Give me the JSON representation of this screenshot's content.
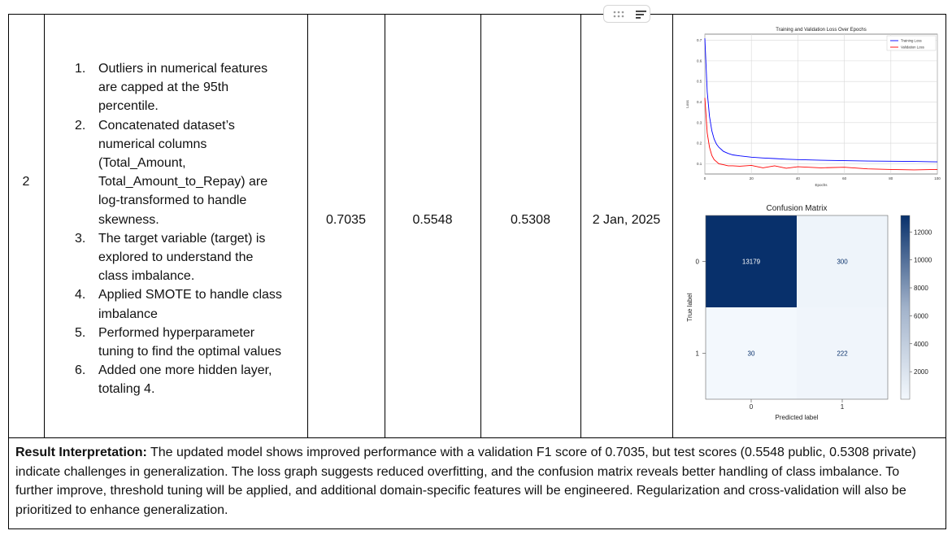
{
  "row_number": "2",
  "steps": [
    {
      "num": "1.",
      "lines": [
        "Outliers in numerical features",
        "are capped at the 95th",
        "percentile."
      ]
    },
    {
      "num": "2.",
      "lines": [
        "Concatenated dataset’s",
        "numerical columns",
        "(Total_Amount,",
        "Total_Amount_to_Repay) are",
        "log-transformed to handle",
        "skewness."
      ]
    },
    {
      "num": "3.",
      "lines": [
        "The target variable (target) is",
        "explored to understand the",
        "class imbalance."
      ]
    },
    {
      "num": "4.",
      "lines": [
        "Applied SMOTE to handle class",
        "imbalance"
      ]
    },
    {
      "num": "5.",
      "lines": [
        "Performed hyperparameter",
        "tuning to find the optimal values"
      ]
    },
    {
      "num": "6.",
      "lines": [
        "Added one more hidden layer,",
        "totaling 4."
      ]
    }
  ],
  "metrics": {
    "validation_f1": "0.7035",
    "public_score": "0.5548",
    "private_score": "0.5308",
    "date": "2 Jan, 2025"
  },
  "result": {
    "label": "Result Interpretation:",
    "text": " The updated model shows improved performance with a validation F1 score of 0.7035, but test scores (0.5548 public, 0.5308 private) indicate challenges in generalization. The loss graph suggests reduced overfitting, and the confusion matrix reveals better handling of class imbalance. To further improve, threshold tuning will be applied, and additional domain-specific features will be engineered. Regularization and cross-validation will also be prioritized to enhance generalization."
  },
  "icons": {
    "drag": "drag-handle-icon",
    "menu": "lines-menu-icon"
  },
  "colors": {
    "train": "#0000ff",
    "val": "#ff0000",
    "cm_dark": "#08306b",
    "cm_light": "#f3f8fd"
  },
  "chart_data": [
    {
      "type": "line",
      "title": "Training and Validation Loss Over Epochs",
      "xlabel": "Epochs",
      "ylabel": "Loss",
      "xlim": [
        0,
        100
      ],
      "ylim": [
        0.05,
        0.73
      ],
      "xticks": [
        "0",
        "20",
        "40",
        "60",
        "80",
        "100"
      ],
      "yticks": [
        "0.1",
        "0.2",
        "0.3",
        "0.4",
        "0.5",
        "0.6",
        "0.7"
      ],
      "grid": true,
      "legend": "top-right",
      "x": [
        0,
        1,
        2,
        3,
        4,
        5,
        6,
        8,
        10,
        12,
        15,
        20,
        25,
        30,
        35,
        40,
        50,
        60,
        70,
        80,
        90,
        100
      ],
      "series": [
        {
          "name": "Training Loss",
          "color": "#0000ff",
          "values": [
            0.71,
            0.45,
            0.33,
            0.26,
            0.22,
            0.195,
            0.18,
            0.16,
            0.15,
            0.143,
            0.138,
            0.132,
            0.128,
            0.125,
            0.122,
            0.12,
            0.117,
            0.115,
            0.113,
            0.112,
            0.111,
            0.109
          ]
        },
        {
          "name": "Validation Loss",
          "color": "#ff0000",
          "values": [
            0.42,
            0.25,
            0.18,
            0.14,
            0.12,
            0.11,
            0.1,
            0.095,
            0.09,
            0.09,
            0.088,
            0.092,
            0.08,
            0.09,
            0.078,
            0.085,
            0.08,
            0.083,
            0.075,
            0.072,
            0.07,
            0.072
          ]
        }
      ]
    },
    {
      "type": "heatmap",
      "title": "Confusion Matrix",
      "xlabel": "Predicted label",
      "ylabel": "True label",
      "row_labels": [
        "0",
        "1"
      ],
      "col_labels": [
        "0",
        "1"
      ],
      "values": [
        [
          13179,
          300
        ],
        [
          30,
          222
        ]
      ],
      "colorbar_ticks": [
        "2000",
        "4000",
        "6000",
        "8000",
        "10000",
        "12000"
      ]
    }
  ]
}
